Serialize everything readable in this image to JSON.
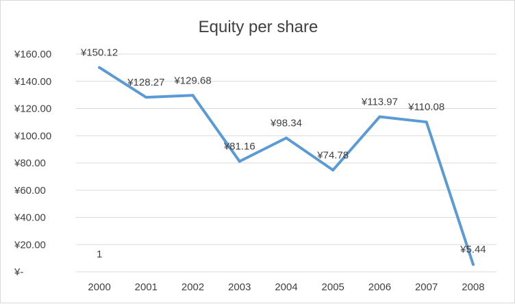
{
  "chart_data": {
    "type": "line",
    "title": "Equity per share",
    "xlabel": "",
    "ylabel": "",
    "categories": [
      "2000",
      "2001",
      "2002",
      "2003",
      "2004",
      "2005",
      "2006",
      "2007",
      "2008"
    ],
    "series": [
      {
        "values": [
          150.12,
          128.27,
          129.68,
          81.16,
          98.34,
          74.78,
          113.97,
          110.08,
          5.44
        ],
        "labels": [
          "¥150.12",
          "¥128.27",
          "¥129.68",
          "¥81.16",
          "¥98.34",
          "¥74.78",
          "¥113.97",
          "¥110.08",
          "¥5.44"
        ],
        "color": "#5b9bd5"
      }
    ],
    "ylim": [
      0,
      160
    ],
    "yticks": [
      0,
      20,
      40,
      60,
      80,
      100,
      120,
      140,
      160
    ],
    "ytick_labels": [
      "¥-",
      "¥20.00",
      "¥40.00",
      "¥60.00",
      "¥80.00",
      "¥100.00",
      "¥120.00",
      "¥140.00",
      "¥160.00"
    ],
    "grid": true,
    "legend": "none",
    "annotations": [
      {
        "text": "1",
        "x": "2000",
        "y": 13
      }
    ]
  }
}
